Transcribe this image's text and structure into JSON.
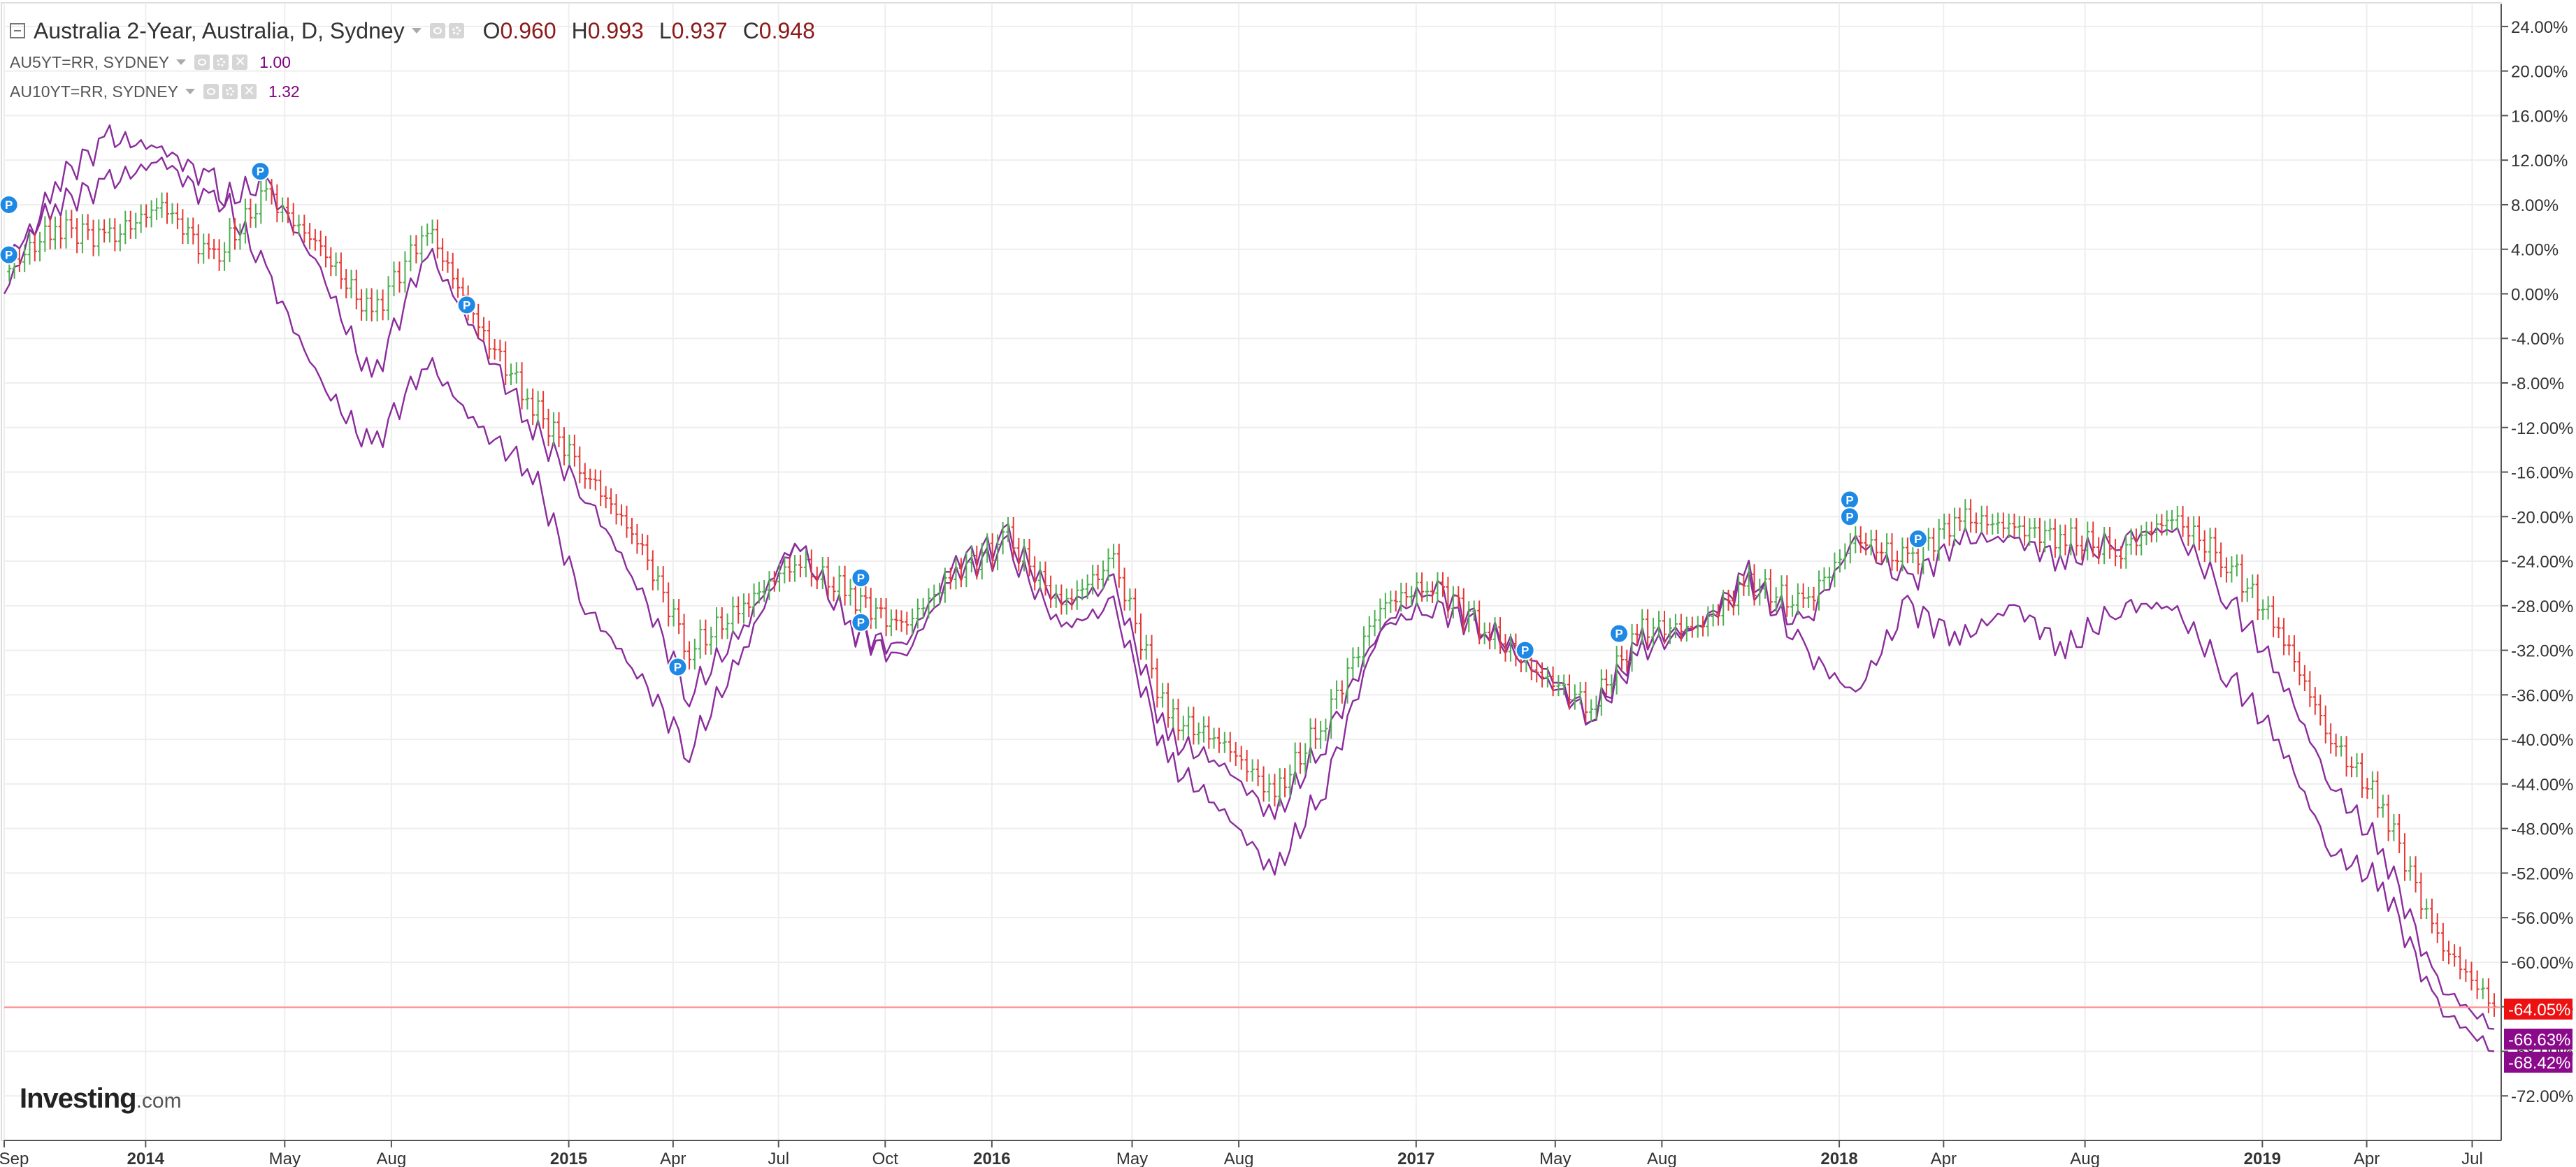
{
  "header": {
    "title": "Australia 2-Year, Australia, D, Sydney",
    "ohlc": {
      "o_label": "O",
      "o": "0.960",
      "h_label": "H",
      "h": "0.993",
      "l_label": "L",
      "l": "0.937",
      "c_label": "C",
      "c": "0.948"
    }
  },
  "overlays": [
    {
      "label": "AU5YT=RR, SYDNEY",
      "value": "1.00"
    },
    {
      "label": "AU10YT=RR, SYDNEY",
      "value": "1.32"
    }
  ],
  "logo": {
    "brand": "Investing",
    "suffix": ".com"
  },
  "colors": {
    "up": "#4caf50",
    "down": "#e53935",
    "overlay": "#8b2c9c",
    "price_line": "#ff8a8a",
    "badge_red": "#ee1111",
    "badge_purple": "#8b0a8b",
    "marker": "#1e88e5"
  },
  "chart_data": {
    "type": "line",
    "title": "Australia 2-Year, Australia, D, Sydney",
    "y_unit": "%",
    "ylim": [
      -76,
      26
    ],
    "y_ticks": [
      "24.00%",
      "20.00%",
      "16.00%",
      "12.00%",
      "8.00%",
      "4.00%",
      "0.00%",
      "-4.00%",
      "-8.00%",
      "-12.00%",
      "-16.00%",
      "-20.00%",
      "-24.00%",
      "-28.00%",
      "-32.00%",
      "-36.00%",
      "-40.00%",
      "-44.00%",
      "-48.00%",
      "-52.00%",
      "-56.00%",
      "-60.00%",
      "-64.00%",
      "-68.00%",
      "-72.00%"
    ],
    "x_ticks": [
      "Sep",
      "2014",
      "May",
      "Aug",
      "2015",
      "Apr",
      "Jul",
      "Oct",
      "2016",
      "May",
      "Aug",
      "2017",
      "May",
      "Aug",
      "2018",
      "Apr",
      "Aug",
      "2019",
      "Apr",
      "Jul"
    ],
    "x_tick_dates": [
      "2013-09-01",
      "2014-01-01",
      "2014-05-01",
      "2014-08-01",
      "2015-01-01",
      "2015-04-01",
      "2015-07-01",
      "2015-10-01",
      "2016-01-01",
      "2016-05-01",
      "2016-08-01",
      "2017-01-01",
      "2017-05-01",
      "2017-08-01",
      "2018-01-01",
      "2018-04-01",
      "2018-08-01",
      "2019-01-01",
      "2019-04-01",
      "2019-07-01"
    ],
    "x_range": [
      "2013-09-01",
      "2019-07-20"
    ],
    "grid": true,
    "last_values": [
      "-64.05%",
      "-66.63%",
      "-68.42%"
    ],
    "current_level": -64.05,
    "series": [
      {
        "name": "Australia 2-Year",
        "style": "ohlc",
        "x": [
          "2013-09-01",
          "2013-10-15",
          "2013-12-01",
          "2014-01-15",
          "2014-03-01",
          "2014-04-15",
          "2014-06-01",
          "2014-07-15",
          "2014-09-01",
          "2014-10-15",
          "2014-12-01",
          "2015-01-15",
          "2015-03-01",
          "2015-04-15",
          "2015-06-01",
          "2015-07-15",
          "2015-09-01",
          "2015-10-15",
          "2015-12-01",
          "2016-01-15",
          "2016-03-01",
          "2016-04-15",
          "2016-06-01",
          "2016-07-15",
          "2016-09-01",
          "2016-10-15",
          "2016-12-01",
          "2017-01-15",
          "2017-03-01",
          "2017-04-15",
          "2017-06-01",
          "2017-07-15",
          "2017-09-01",
          "2017-10-15",
          "2017-12-01",
          "2018-01-15",
          "2018-03-01",
          "2018-04-15",
          "2018-06-01",
          "2018-07-15",
          "2018-09-01",
          "2018-10-15",
          "2018-12-01",
          "2019-01-15",
          "2019-03-01",
          "2019-04-15",
          "2019-06-01",
          "2019-07-20"
        ],
        "y": [
          2,
          6,
          5,
          8,
          3,
          9,
          4,
          -2,
          6,
          -3,
          -10,
          -16,
          -22,
          -32,
          -28,
          -24,
          -27,
          -30,
          -25,
          -22,
          -28,
          -24,
          -38,
          -40,
          -45,
          -38,
          -28,
          -26,
          -30,
          -34,
          -37,
          -30,
          -30,
          -26,
          -28,
          -22,
          -24,
          -20,
          -21,
          -22,
          -23,
          -20,
          -24,
          -30,
          -40,
          -46,
          -58,
          -64
        ]
      },
      {
        "name": "AU5YT=RR, SYDNEY",
        "style": "line",
        "x": [
          "2013-09-01",
          "2013-10-15",
          "2013-12-01",
          "2014-01-15",
          "2014-03-01",
          "2014-04-15",
          "2014-06-01",
          "2014-07-15",
          "2014-09-01",
          "2014-10-15",
          "2014-12-01",
          "2015-01-15",
          "2015-03-01",
          "2015-04-15",
          "2015-06-01",
          "2015-07-15",
          "2015-09-01",
          "2015-10-15",
          "2015-12-01",
          "2016-01-15",
          "2016-03-01",
          "2016-04-15",
          "2016-06-01",
          "2016-07-15",
          "2016-09-01",
          "2016-10-15",
          "2016-12-01",
          "2017-01-15",
          "2017-03-01",
          "2017-04-15",
          "2017-06-01",
          "2017-07-15",
          "2017-09-01",
          "2017-10-15",
          "2017-12-01",
          "2018-01-15",
          "2018-03-01",
          "2018-04-15",
          "2018-06-01",
          "2018-07-15",
          "2018-09-01",
          "2018-10-15",
          "2018-12-01",
          "2019-01-15",
          "2019-03-01",
          "2019-04-15",
          "2019-06-01",
          "2019-07-20"
        ],
        "y": [
          3,
          8,
          10,
          12,
          8,
          10,
          2,
          -8,
          4,
          -4,
          -12,
          -18,
          -26,
          -36,
          -30,
          -22,
          -30,
          -32,
          -24,
          -22,
          -28,
          -26,
          -40,
          -42,
          -47,
          -40,
          -30,
          -26,
          -30,
          -33,
          -38,
          -31,
          -30,
          -26,
          -30,
          -22,
          -26,
          -22,
          -22,
          -24,
          -22,
          -21,
          -27,
          -34,
          -44,
          -50,
          -62,
          -66
        ]
      },
      {
        "name": "AU10YT=RR, SYDNEY",
        "style": "line",
        "x": [
          "2013-09-01",
          "2013-10-15",
          "2013-12-01",
          "2014-01-15",
          "2014-03-01",
          "2014-04-15",
          "2014-06-01",
          "2014-07-15",
          "2014-09-01",
          "2014-10-15",
          "2014-12-01",
          "2015-01-15",
          "2015-03-01",
          "2015-04-15",
          "2015-06-01",
          "2015-07-15",
          "2015-09-01",
          "2015-10-15",
          "2015-12-01",
          "2016-01-15",
          "2016-03-01",
          "2016-04-15",
          "2016-06-01",
          "2016-07-15",
          "2016-09-01",
          "2016-10-15",
          "2016-12-01",
          "2017-01-15",
          "2017-03-01",
          "2017-04-15",
          "2017-06-01",
          "2017-07-15",
          "2017-09-01",
          "2017-10-15",
          "2017-12-01",
          "2018-01-15",
          "2018-03-01",
          "2018-04-15",
          "2018-06-01",
          "2018-07-15",
          "2018-09-01",
          "2018-10-15",
          "2018-12-01",
          "2019-01-15",
          "2019-03-01",
          "2019-04-15",
          "2019-06-01",
          "2019-07-20"
        ],
        "y": [
          0,
          10,
          14,
          13,
          10,
          2,
          -8,
          -14,
          -6,
          -12,
          -16,
          -28,
          -34,
          -41,
          -32,
          -22,
          -30,
          -33,
          -25,
          -23,
          -30,
          -28,
          -42,
          -46,
          -52,
          -44,
          -30,
          -28,
          -30,
          -34,
          -38,
          -32,
          -30,
          -25,
          -32,
          -36,
          -28,
          -31,
          -28,
          -32,
          -28,
          -28,
          -34,
          -40,
          -50,
          -53,
          -64,
          -68
        ]
      }
    ],
    "markers": [
      {
        "label": "P",
        "x": "2013-09-05",
        "y": 8
      },
      {
        "label": "P",
        "x": "2013-09-05",
        "y": 3.5
      },
      {
        "label": "P",
        "x": "2014-04-10",
        "y": 11
      },
      {
        "label": "P",
        "x": "2014-10-05",
        "y": -1
      },
      {
        "label": "P",
        "x": "2015-04-05",
        "y": -33.5
      },
      {
        "label": "P",
        "x": "2015-09-10",
        "y": -25.5
      },
      {
        "label": "P",
        "x": "2015-09-10",
        "y": -29.5
      },
      {
        "label": "P",
        "x": "2017-04-05",
        "y": -32
      },
      {
        "label": "P",
        "x": "2017-06-25",
        "y": -30.5
      },
      {
        "label": "P",
        "x": "2018-01-10",
        "y": -18.5
      },
      {
        "label": "P",
        "x": "2018-01-10",
        "y": -20
      },
      {
        "label": "P",
        "x": "2018-03-10",
        "y": -22
      }
    ]
  }
}
